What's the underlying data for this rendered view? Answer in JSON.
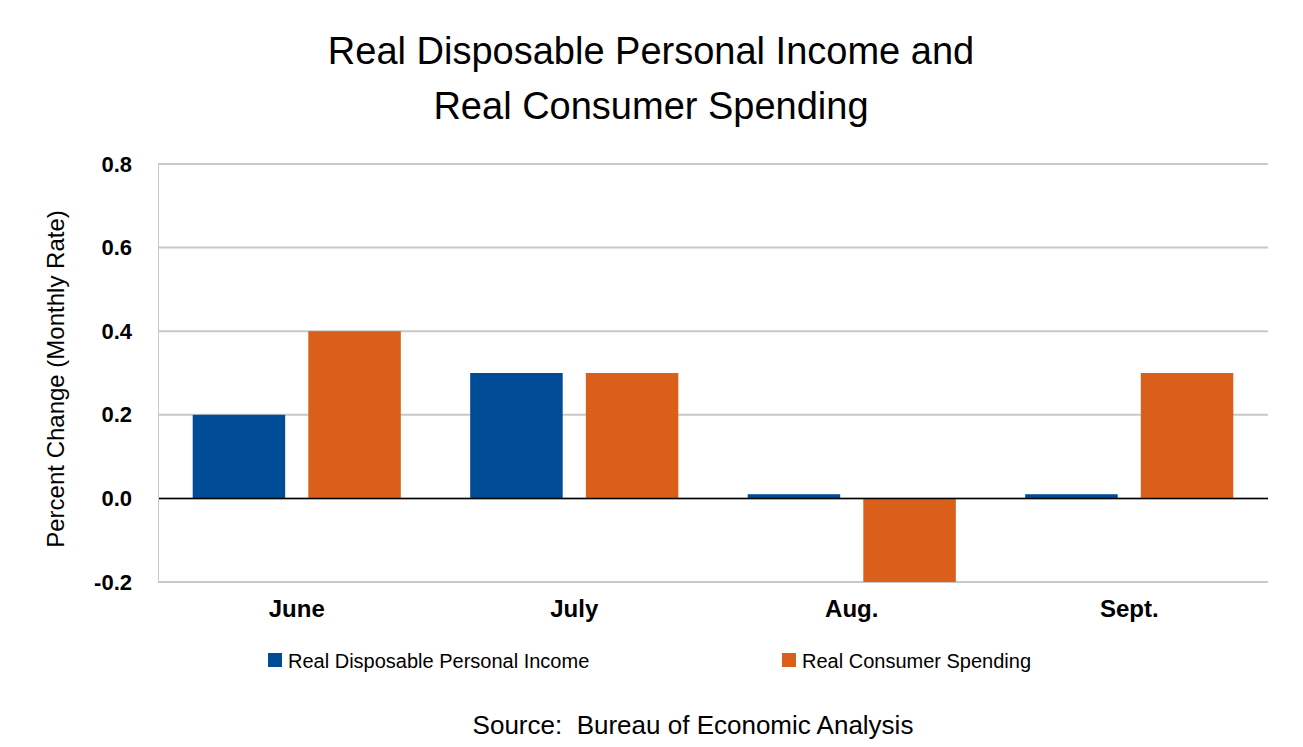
{
  "chart_data": {
    "type": "bar",
    "title": [
      "Real Disposable Personal Income and",
      "Real Consumer Spending"
    ],
    "y_label": "Percent Change (Monthly Rate)",
    "source": "Source:  Bureau of Economic Analysis",
    "categories": [
      "June",
      "July",
      "Aug.",
      "Sept."
    ],
    "series": [
      {
        "name": "Real Disposable Personal Income",
        "color": "#004C97",
        "values": [
          0.2,
          0.3,
          0.01,
          0.01
        ]
      },
      {
        "name": "Real Consumer Spending",
        "color": "#D95F1A",
        "values": [
          0.4,
          0.3,
          -0.2,
          0.3
        ]
      }
    ],
    "ylim": [
      -0.2,
      0.8
    ],
    "yticks": [
      -0.2,
      {
        "value": 0,
        "label": "0.0"
      },
      0.2,
      0.4,
      0.6,
      0.8
    ],
    "grid": true,
    "legend": "bottom"
  }
}
